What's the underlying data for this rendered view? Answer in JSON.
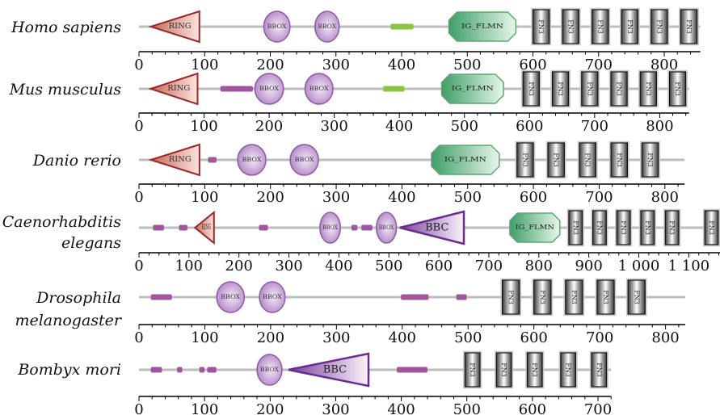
{
  "figure": {
    "tracks": [
      {
        "species": [
          "Homo sapiens"
        ],
        "length": 855,
        "ticks": [
          0,
          100,
          200,
          300,
          400,
          500,
          600,
          700,
          800
        ],
        "tick_labels": [
          "0",
          "100",
          "200",
          "300",
          "400",
          "500",
          "600",
          "700",
          "800"
        ],
        "domains": [
          {
            "type": "RING",
            "label": "RING",
            "start": 18,
            "end": 92
          },
          {
            "type": "BBOX",
            "label": "BBOX",
            "start": 190,
            "end": 230
          },
          {
            "type": "BBOX",
            "label": "BBOX",
            "start": 268,
            "end": 305
          },
          {
            "type": "motif",
            "label": "",
            "start": 383,
            "end": 418,
            "color": "#8cc63f"
          },
          {
            "type": "IG_FLMN",
            "label": "IG_FLMN",
            "start": 472,
            "end": 574
          },
          {
            "type": "FN3",
            "label": "FN3",
            "start": 600,
            "end": 625
          },
          {
            "type": "FN3",
            "label": "FN3",
            "start": 645,
            "end": 670
          },
          {
            "type": "FN3",
            "label": "FN3",
            "start": 690,
            "end": 715
          },
          {
            "type": "FN3",
            "label": "FN3",
            "start": 735,
            "end": 760
          },
          {
            "type": "FN3",
            "label": "FN3",
            "start": 780,
            "end": 805
          },
          {
            "type": "FN3",
            "label": "FN3",
            "start": 825,
            "end": 850
          }
        ]
      },
      {
        "species": [
          "Mus musculus"
        ],
        "length": 845,
        "ticks": [
          0,
          100,
          200,
          300,
          400,
          500,
          600,
          700,
          800
        ],
        "tick_labels": [
          "0",
          "100",
          "200",
          "300",
          "400",
          "500",
          "600",
          "700",
          "800"
        ],
        "domains": [
          {
            "type": "RING",
            "label": "RING",
            "start": 18,
            "end": 90
          },
          {
            "type": "motif",
            "label": "",
            "start": 125,
            "end": 175,
            "color": "#a1559e"
          },
          {
            "type": "BBOX",
            "label": "BBOX",
            "start": 178,
            "end": 222
          },
          {
            "type": "BBOX",
            "label": "BBOX",
            "start": 255,
            "end": 298
          },
          {
            "type": "motif",
            "label": "",
            "start": 375,
            "end": 408,
            "color": "#8cc63f"
          },
          {
            "type": "IG_FLMN",
            "label": "IG_FLMN",
            "start": 465,
            "end": 560
          },
          {
            "type": "FN3",
            "label": "FN3",
            "start": 590,
            "end": 615
          },
          {
            "type": "FN3",
            "label": "FN3",
            "start": 635,
            "end": 660
          },
          {
            "type": "FN3",
            "label": "FN3",
            "start": 680,
            "end": 705
          },
          {
            "type": "FN3",
            "label": "FN3",
            "start": 725,
            "end": 750
          },
          {
            "type": "FN3",
            "label": "FN3",
            "start": 770,
            "end": 795
          },
          {
            "type": "FN3",
            "label": "FN3",
            "start": 815,
            "end": 840
          }
        ]
      },
      {
        "species": [
          "Danio rerio"
        ],
        "length": 830,
        "ticks": [
          0,
          100,
          200,
          300,
          400,
          500,
          600,
          700,
          800
        ],
        "tick_labels": [
          "0",
          "100",
          "200",
          "300",
          "400",
          "500",
          "600",
          "700",
          "800"
        ],
        "domains": [
          {
            "type": "RING",
            "label": "RING",
            "start": 18,
            "end": 92
          },
          {
            "type": "motif",
            "label": "",
            "start": 105,
            "end": 118,
            "color": "#a1559e"
          },
          {
            "type": "BBOX",
            "label": "BBOX",
            "start": 150,
            "end": 193
          },
          {
            "type": "BBOX",
            "label": "BBOX",
            "start": 230,
            "end": 273
          },
          {
            "type": "IG_FLMN",
            "label": "IG_FLMN",
            "start": 445,
            "end": 548
          },
          {
            "type": "FN3",
            "label": "FN3",
            "start": 575,
            "end": 600
          },
          {
            "type": "FN3",
            "label": "FN3",
            "start": 622,
            "end": 647
          },
          {
            "type": "FN3",
            "label": "FN3",
            "start": 670,
            "end": 695
          },
          {
            "type": "FN3",
            "label": "FN3",
            "start": 718,
            "end": 743
          },
          {
            "type": "FN3",
            "label": "FN3",
            "start": 765,
            "end": 790
          }
        ]
      },
      {
        "species": [
          "Caenorhabditis",
          "elegans"
        ],
        "length": 1163,
        "ticks": [
          0,
          100,
          200,
          300,
          400,
          500,
          600,
          700,
          800,
          900,
          1000,
          1100
        ],
        "tick_labels": [
          "0",
          "100",
          "200",
          "300",
          "400",
          "500",
          "600",
          "700",
          "800",
          "900",
          "1 000",
          "1 100"
        ],
        "domains": [
          {
            "type": "motif",
            "label": "",
            "start": 28,
            "end": 50,
            "color": "#a1559e"
          },
          {
            "type": "motif",
            "label": "",
            "start": 80,
            "end": 97,
            "color": "#a1559e"
          },
          {
            "type": "RING",
            "label": "RING",
            "start": 112,
            "end": 150
          },
          {
            "type": "motif",
            "label": "",
            "start": 240,
            "end": 258,
            "color": "#a1559e"
          },
          {
            "type": "BBOX",
            "label": "BBOX",
            "start": 362,
            "end": 403
          },
          {
            "type": "motif",
            "label": "",
            "start": 425,
            "end": 437,
            "color": "#a1559e"
          },
          {
            "type": "motif",
            "label": "",
            "start": 445,
            "end": 467,
            "color": "#a1559e"
          },
          {
            "type": "BBOX",
            "label": "BBOX",
            "start": 475,
            "end": 515
          },
          {
            "type": "BBC",
            "label": "BBC",
            "start": 522,
            "end": 650
          },
          {
            "type": "IG_FLMN",
            "label": "IG_FLMN",
            "start": 742,
            "end": 842
          },
          {
            "type": "FN3",
            "label": "FN3",
            "start": 860,
            "end": 887
          },
          {
            "type": "FN3",
            "label": "FN3",
            "start": 908,
            "end": 935
          },
          {
            "type": "FN3",
            "label": "FN3",
            "start": 956,
            "end": 983
          },
          {
            "type": "FN3",
            "label": "FN3",
            "start": 1004,
            "end": 1031
          },
          {
            "type": "FN3",
            "label": "FN3",
            "start": 1053,
            "end": 1080
          },
          {
            "type": "FN3",
            "label": "FN3",
            "start": 1132,
            "end": 1159
          }
        ]
      },
      {
        "species": [
          "Drosophila",
          "melanogaster"
        ],
        "length": 830,
        "ticks": [
          0,
          100,
          200,
          300,
          400,
          500,
          600,
          700,
          800
        ],
        "tick_labels": [
          "0",
          "100",
          "200",
          "300",
          "400",
          "500",
          "600",
          "700",
          "800"
        ],
        "domains": [
          {
            "type": "motif",
            "label": "",
            "start": 18,
            "end": 50,
            "color": "#a1559e"
          },
          {
            "type": "BBOX",
            "label": "BBOX",
            "start": 118,
            "end": 160
          },
          {
            "type": "BBOX",
            "label": "BBOX",
            "start": 183,
            "end": 222
          },
          {
            "type": "motif",
            "label": "",
            "start": 398,
            "end": 440,
            "color": "#a1559e"
          },
          {
            "type": "motif",
            "label": "",
            "start": 482,
            "end": 498,
            "color": "#a1559e"
          },
          {
            "type": "FN3",
            "label": "FN3",
            "start": 552,
            "end": 578
          },
          {
            "type": "FN3",
            "label": "FN3",
            "start": 600,
            "end": 626
          },
          {
            "type": "FN3",
            "label": "FN3",
            "start": 648,
            "end": 674
          },
          {
            "type": "FN3",
            "label": "FN3",
            "start": 696,
            "end": 722
          },
          {
            "type": "FN3",
            "label": "FN3",
            "start": 743,
            "end": 769
          }
        ]
      },
      {
        "species": [
          "Bombyx mori"
        ],
        "length": 720,
        "ticks": [
          0,
          100,
          200,
          300,
          400,
          500,
          600,
          700
        ],
        "tick_labels": [
          "0",
          "100",
          "200",
          "300",
          "400",
          "500",
          "600",
          "700"
        ],
        "domains": [
          {
            "type": "motif",
            "label": "",
            "start": 18,
            "end": 35,
            "color": "#a1559e"
          },
          {
            "type": "motif",
            "label": "",
            "start": 58,
            "end": 66,
            "color": "#a1559e"
          },
          {
            "type": "motif",
            "label": "",
            "start": 92,
            "end": 100,
            "color": "#a1559e"
          },
          {
            "type": "motif",
            "label": "",
            "start": 104,
            "end": 118,
            "color": "#a1559e"
          },
          {
            "type": "BBOX",
            "label": "BBOX",
            "start": 180,
            "end": 218
          },
          {
            "type": "BBC",
            "label": "BBC",
            "start": 228,
            "end": 350
          },
          {
            "type": "motif",
            "label": "",
            "start": 393,
            "end": 440,
            "color": "#a1559e"
          },
          {
            "type": "FN3",
            "label": "FN3",
            "start": 497,
            "end": 520
          },
          {
            "type": "FN3",
            "label": "FN3",
            "start": 545,
            "end": 568
          },
          {
            "type": "FN3",
            "label": "FN3",
            "start": 592,
            "end": 615
          },
          {
            "type": "FN3",
            "label": "FN3",
            "start": 643,
            "end": 666
          },
          {
            "type": "FN3",
            "label": "FN3",
            "start": 690,
            "end": 713
          }
        ]
      }
    ],
    "colors": {
      "backbone": "#bdbdbd",
      "axis": "#000000",
      "ring_fill_dark": "#c46a5c",
      "ring_fill_light": "#fbe4de",
      "ring_stroke": "#a0262a",
      "bbox_fill_dark": "#b081c4",
      "bbox_fill_light": "#f2e8f6",
      "bbox_stroke": "#8d5aa6",
      "bbc_fill_dark": "#7b3fa0",
      "bbc_fill_light": "#fbf4fb",
      "bbc_stroke": "#6a2c8e",
      "igflmn_fill_dark": "#3f9e68",
      "igflmn_fill_light": "#e6f6ea",
      "igflmn_stroke": "#5ea670",
      "fn3_fill_dark": "#3a3a3a",
      "fn3_fill_light": "#ffffff",
      "fn3_stroke": "#111111"
    }
  }
}
